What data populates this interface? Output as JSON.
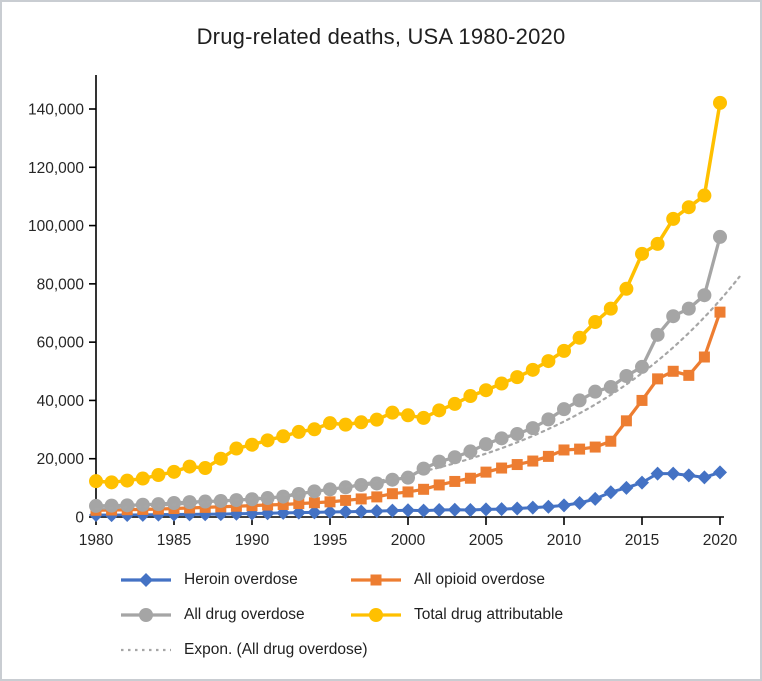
{
  "chart": {
    "title": "Drug-related deaths, USA 1980-2020",
    "background": "#ffffff",
    "frame_border_color": "#c9cdd2",
    "axis_color": "#000000",
    "text_color": "#262626"
  },
  "chart_data": {
    "type": "line",
    "title": "Drug-related deaths, USA 1980-2020",
    "xlabel": "",
    "ylabel": "",
    "xlim": [
      1980,
      2020
    ],
    "ylim": [
      0,
      150000
    ],
    "grid": false,
    "legend_position": "bottom",
    "x_ticks": [
      "1980",
      "1985",
      "1990",
      "1995",
      "2000",
      "2005",
      "2010",
      "2015",
      "2020"
    ],
    "x_tick_values": [
      1980,
      1985,
      1990,
      1995,
      2000,
      2005,
      2010,
      2015,
      2020
    ],
    "y_ticks": [
      "0",
      "20,000",
      "40,000",
      "60,000",
      "80,000",
      "100,000",
      "120,000",
      "140,000"
    ],
    "y_tick_values": [
      0,
      20000,
      40000,
      60000,
      80000,
      100000,
      120000,
      140000
    ],
    "x": [
      1980,
      1981,
      1982,
      1983,
      1984,
      1985,
      1986,
      1987,
      1988,
      1989,
      1990,
      1991,
      1992,
      1993,
      1994,
      1995,
      1996,
      1997,
      1998,
      1999,
      2000,
      2001,
      2002,
      2003,
      2004,
      2005,
      2006,
      2007,
      2008,
      2009,
      2010,
      2011,
      2012,
      2013,
      2014,
      2015,
      2016,
      2017,
      2018,
      2019,
      2020
    ],
    "series": [
      {
        "name": "Heroin overdose",
        "color": "#4472C4",
        "marker": "diamond",
        "line_width": 3,
        "values": [
          700,
          650,
          700,
          750,
          800,
          850,
          900,
          950,
          1000,
          1100,
          1200,
          1300,
          1400,
          1500,
          1600,
          1700,
          1800,
          1900,
          2000,
          2200,
          2300,
          2200,
          2400,
          2500,
          2400,
          2600,
          2700,
          2900,
          3200,
          3500,
          4000,
          4800,
          6200,
          8500,
          10000,
          11800,
          14900,
          14900,
          14300,
          13600,
          15300
        ]
      },
      {
        "name": "All opioid overdose",
        "color": "#ED7D31",
        "marker": "square",
        "line_width": 3.25,
        "values": [
          2300,
          2400,
          2500,
          2600,
          2700,
          2900,
          3100,
          3300,
          3500,
          3700,
          3900,
          4100,
          4300,
          4600,
          4900,
          5200,
          5700,
          6200,
          6900,
          8000,
          8600,
          9500,
          11000,
          12200,
          13300,
          15400,
          16800,
          18000,
          19200,
          20800,
          23000,
          23300,
          24000,
          26000,
          33000,
          40000,
          47400,
          50000,
          48600,
          54900,
          70300
        ]
      },
      {
        "name": "All drug overdose",
        "color": "#A5A5A5",
        "marker": "circle",
        "line_width": 3.25,
        "values": [
          3800,
          3900,
          4000,
          4200,
          4400,
          4800,
          5100,
          5300,
          5500,
          5800,
          6100,
          6500,
          7000,
          7900,
          8800,
          9500,
          10200,
          11000,
          11500,
          12800,
          13500,
          16600,
          19000,
          20500,
          22500,
          25000,
          27000,
          28500,
          30500,
          33500,
          37000,
          40000,
          43000,
          44600,
          48400,
          51500,
          62500,
          68900,
          71500,
          76100,
          96100
        ]
      },
      {
        "name": "Total drug attributable",
        "color": "#FFC000",
        "marker": "circle",
        "line_width": 3.5,
        "values": [
          12300,
          11900,
          12500,
          13200,
          14400,
          15500,
          17300,
          16800,
          20000,
          23500,
          24800,
          26300,
          27700,
          29200,
          30100,
          32200,
          31700,
          32500,
          33400,
          35800,
          34900,
          34000,
          36600,
          38800,
          41500,
          43500,
          45800,
          48000,
          50500,
          53500,
          57000,
          61500,
          66900,
          71500,
          78300,
          90300,
          93700,
          102300,
          106300,
          110300,
          142100
        ]
      },
      {
        "name": "Expon. (All drug overdose)",
        "color": "#A6A6A6",
        "marker": "none",
        "style": "dotted",
        "trendline": {
          "model": "exponential",
          "a": 2800,
          "b": 0.082,
          "x_start": 1980,
          "x_end": 2021.4
        }
      }
    ]
  },
  "layout_note": "values estimated from plotted pixel positions"
}
